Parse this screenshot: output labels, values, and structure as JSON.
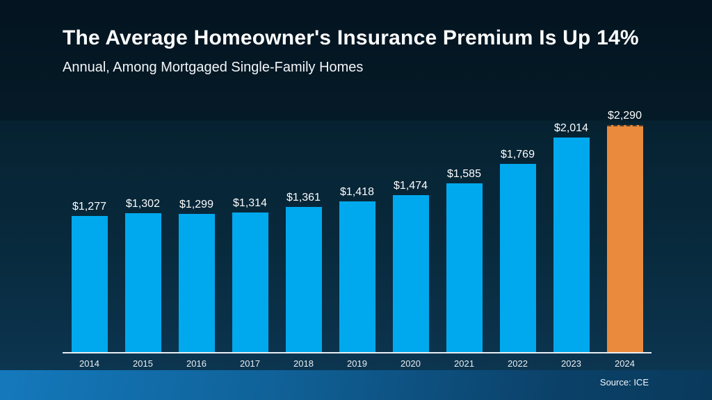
{
  "header": {
    "title": "The Average Homeowner's Insurance Premium Is Up 14%",
    "subtitle": "Annual, Among Mortgaged Single-Family Homes"
  },
  "footer": {
    "source": "Source: ICE"
  },
  "chart_data": {
    "type": "bar",
    "title": "The Average Homeowner's Insurance Premium Is Up 14%",
    "subtitle": "Annual, Among Mortgaged Single-Family Homes",
    "xlabel": "",
    "ylabel": "",
    "categories": [
      "2014",
      "2015",
      "2016",
      "2017",
      "2018",
      "2019",
      "2020",
      "2021",
      "2022",
      "2023",
      "2024"
    ],
    "values": [
      1277,
      1302,
      1299,
      1314,
      1361,
      1418,
      1474,
      1585,
      1769,
      2014,
      2290
    ],
    "value_labels": [
      "$1,277",
      "$1,302",
      "$1,299",
      "$1,314",
      "$1,361",
      "$1,418",
      "$1,474",
      "$1,585",
      "$1,769",
      "$2,014",
      "$2,290"
    ],
    "highlight_index": 10,
    "highlight_style": "dashed-top",
    "ylim": [
      0,
      2290
    ],
    "grid": false,
    "legend": "none",
    "y_axis_visible": false,
    "colors": {
      "bar": "#00A9EE",
      "highlight_bar": "#E98A3D",
      "axis_line": "#E9EDF1",
      "label_text": "#FCFDFE"
    },
    "source": "Source: ICE"
  }
}
